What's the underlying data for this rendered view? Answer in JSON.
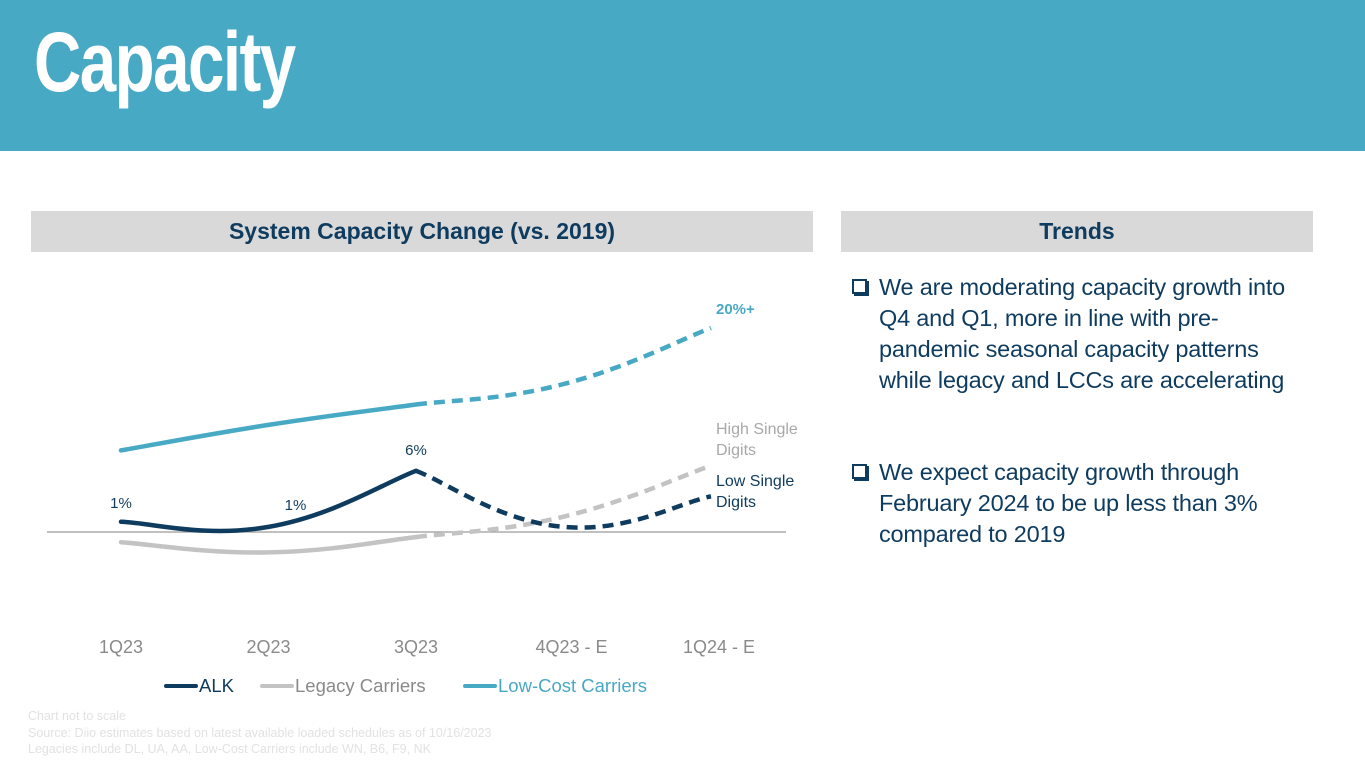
{
  "header": {
    "title": "Capacity",
    "band_color": "#48a9c5"
  },
  "chart_panel": {
    "title": "System Capacity Change (vs. 2019)"
  },
  "trends_panel": {
    "title": "Trends",
    "bullets": [
      {
        "icon": "checkbox-bullet-icon",
        "text": "We are moderating capacity growth into Q4 and Q1, more in line with pre-pandemic seasonal capacity patterns while legacy and LCCs are accelerating"
      },
      {
        "icon": "checkbox-bullet-icon",
        "text": "We expect capacity growth through February 2024 to be up less than 3% compared to 2019"
      }
    ]
  },
  "footnotes": [
    "Chart not to scale",
    "Source: Diio estimates based on latest available loaded schedules as of 10/16/2023",
    "Legacies include DL, UA, AA, Low-Cost Carriers include WN, B6, F9, NK"
  ],
  "chart_data": {
    "type": "line",
    "title": "System Capacity Change (vs. 2019)",
    "note": "Chart not to scale",
    "categories": [
      "1Q23",
      "2Q23",
      "3Q23",
      "4Q23 - E",
      "1Q24 - E"
    ],
    "actual_through_index": 2,
    "xlabel": "",
    "ylabel": "",
    "grid": false,
    "baseline": 0,
    "legend_position": "bottom",
    "series": [
      {
        "name": "ALK",
        "color": "#0e3b5e",
        "values": [
          1,
          0.5,
          6,
          0.5,
          3.5
        ],
        "data_labels": [
          "1%",
          "1%",
          "6%",
          "",
          "Low Single Digits"
        ]
      },
      {
        "name": "Legacy Carriers",
        "color": "#c3c3c3",
        "values": [
          -1,
          -2,
          -0.5,
          1.5,
          6.5
        ],
        "data_labels": [
          "",
          "",
          "",
          "",
          "High Single Digits"
        ]
      },
      {
        "name": "Low-Cost Carriers",
        "color": "#48a9c5",
        "values": [
          8,
          10.5,
          12.5,
          14.5,
          20
        ],
        "data_labels": [
          "",
          "",
          "",
          "",
          "20%+"
        ]
      }
    ],
    "ylim": [
      -4,
      22
    ]
  }
}
